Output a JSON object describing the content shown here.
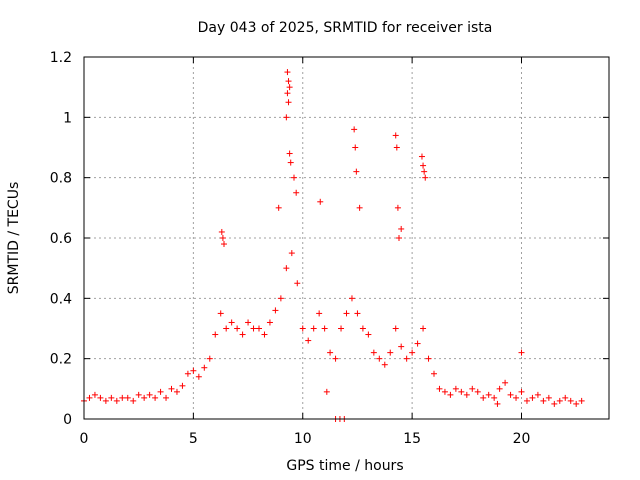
{
  "chart_data": {
    "type": "scatter",
    "title": "Day 043 of 2025, SRMTID for receiver ista",
    "xlabel": "GPS time / hours",
    "ylabel": "SRMTID / TECUs",
    "xlim": [
      0,
      24
    ],
    "ylim": [
      0,
      1.2
    ],
    "xticks": [
      0,
      5,
      10,
      15,
      20
    ],
    "xtick_labels": [
      "0",
      "5",
      "10",
      "15",
      "20"
    ],
    "yticks": [
      0,
      0.2,
      0.4,
      0.6,
      0.8,
      1,
      1.2
    ],
    "ytick_labels": [
      "0",
      "0.2",
      "0.4",
      "0.6",
      "0.8",
      "1",
      "1.2"
    ],
    "grid": true,
    "marker": "+",
    "series_color": "#ff0000",
    "series": [
      {
        "name": "SRMTID",
        "x": [
          0.0,
          0.25,
          0.5,
          0.75,
          1.0,
          1.25,
          1.5,
          1.75,
          2.0,
          2.25,
          2.5,
          2.75,
          3.0,
          3.25,
          3.5,
          3.75,
          4.0,
          4.25,
          4.5,
          4.75,
          5.0,
          5.25,
          5.5,
          5.75,
          6.0,
          6.25,
          6.5,
          6.75,
          7.0,
          7.25,
          7.5,
          7.75,
          8.0,
          8.25,
          8.5,
          8.75,
          9.0,
          9.25,
          9.5,
          9.75,
          10.0,
          10.25,
          10.5,
          10.75,
          11.0,
          11.25,
          11.5,
          11.75,
          12.0,
          12.25,
          12.5,
          12.75,
          13.0,
          13.25,
          13.5,
          13.75,
          14.0,
          14.25,
          14.5,
          14.75,
          15.0,
          15.25,
          15.5,
          15.75,
          16.0,
          16.25,
          16.5,
          16.75,
          17.0,
          17.25,
          17.5,
          17.75,
          18.0,
          18.25,
          18.5,
          18.75,
          19.0,
          19.25,
          19.5,
          19.75,
          20.0,
          20.25,
          20.5,
          20.75,
          21.0,
          21.25,
          21.5,
          21.75,
          22.0,
          22.25,
          22.5,
          22.75,
          9.3,
          9.35,
          9.4,
          9.3,
          9.35,
          9.25,
          9.4,
          9.45,
          8.9,
          9.6,
          9.7,
          10.8,
          12.35,
          12.4,
          12.45,
          12.6,
          14.25,
          14.3,
          14.35,
          14.4,
          14.5,
          15.45,
          15.5,
          15.55,
          15.6,
          6.3,
          6.35,
          6.4,
          11.5,
          11.7,
          11.9,
          11.1,
          18.9,
          20.0
        ],
        "y": [
          0.06,
          0.07,
          0.08,
          0.07,
          0.06,
          0.07,
          0.06,
          0.07,
          0.07,
          0.06,
          0.08,
          0.07,
          0.08,
          0.07,
          0.09,
          0.07,
          0.1,
          0.09,
          0.11,
          0.15,
          0.16,
          0.14,
          0.17,
          0.2,
          0.28,
          0.35,
          0.3,
          0.32,
          0.3,
          0.28,
          0.32,
          0.3,
          0.3,
          0.28,
          0.32,
          0.36,
          0.4,
          0.5,
          0.55,
          0.45,
          0.3,
          0.26,
          0.3,
          0.35,
          0.3,
          0.22,
          0.2,
          0.3,
          0.35,
          0.4,
          0.35,
          0.3,
          0.28,
          0.22,
          0.2,
          0.18,
          0.22,
          0.3,
          0.24,
          0.2,
          0.22,
          0.25,
          0.3,
          0.2,
          0.15,
          0.1,
          0.09,
          0.08,
          0.1,
          0.09,
          0.08,
          0.1,
          0.09,
          0.07,
          0.08,
          0.07,
          0.1,
          0.12,
          0.08,
          0.07,
          0.09,
          0.06,
          0.07,
          0.08,
          0.06,
          0.07,
          0.05,
          0.06,
          0.07,
          0.06,
          0.05,
          0.06,
          1.15,
          1.12,
          1.1,
          1.08,
          1.05,
          1.0,
          0.88,
          0.85,
          0.7,
          0.8,
          0.75,
          0.72,
          0.96,
          0.9,
          0.82,
          0.7,
          0.94,
          0.9,
          0.7,
          0.6,
          0.63,
          0.87,
          0.84,
          0.82,
          0.8,
          0.62,
          0.6,
          0.58,
          0.0,
          0.0,
          0.0,
          0.09,
          0.05,
          0.22
        ]
      }
    ],
    "annotations": []
  }
}
